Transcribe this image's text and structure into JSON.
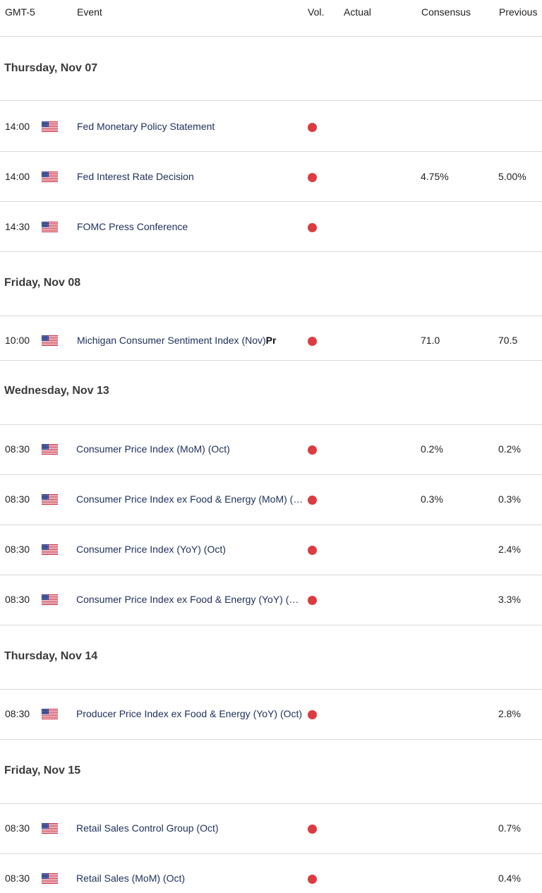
{
  "header": {
    "timezone": "GMT-5",
    "event": "Event",
    "vol": "Vol.",
    "actual": "Actual",
    "consensus": "Consensus",
    "previous": "Previous"
  },
  "flag_icon": "us-flag-icon",
  "volatility_color": "#dc3b42",
  "days": [
    {
      "label": "Thursday, Nov 07"
    },
    {
      "label": "Friday, Nov 08"
    },
    {
      "label": "Wednesday, Nov 13"
    },
    {
      "label": "Thursday, Nov 14"
    },
    {
      "label": "Friday, Nov 15"
    }
  ],
  "events": [
    {
      "time": "14:00",
      "name": "Fed Monetary Policy Statement",
      "consensus": "",
      "previous": ""
    },
    {
      "time": "14:00",
      "name": "Fed Interest Rate Decision",
      "consensus": "4.75%",
      "previous": "5.00%"
    },
    {
      "time": "14:30",
      "name": "FOMC Press Conference",
      "consensus": "",
      "previous": ""
    },
    {
      "time": "10:00",
      "name": "Michigan Consumer Sentiment Index (Nov)",
      "name_suffix": "Pr",
      "consensus": "71.0",
      "previous": "70.5"
    },
    {
      "time": "08:30",
      "name": "Consumer Price Index (MoM) (Oct)",
      "consensus": "0.2%",
      "previous": "0.2%"
    },
    {
      "time": "08:30",
      "name": "Consumer Price Index ex Food & Energy (MoM) (Oct)",
      "consensus": "0.3%",
      "previous": "0.3%"
    },
    {
      "time": "08:30",
      "name": "Consumer Price Index (YoY) (Oct)",
      "consensus": "",
      "previous": "2.4%"
    },
    {
      "time": "08:30",
      "name": "Consumer Price Index ex Food & Energy (YoY) (Oct)",
      "consensus": "",
      "previous": "3.3%"
    },
    {
      "time": "08:30",
      "name": "Producer Price Index ex Food & Energy (YoY) (Oct)",
      "consensus": "",
      "previous": "2.8%"
    },
    {
      "time": "08:30",
      "name": "Retail Sales Control Group (Oct)",
      "consensus": "",
      "previous": "0.7%"
    },
    {
      "time": "08:30",
      "name": "Retail Sales (MoM) (Oct)",
      "consensus": "",
      "previous": "0.4%"
    }
  ]
}
